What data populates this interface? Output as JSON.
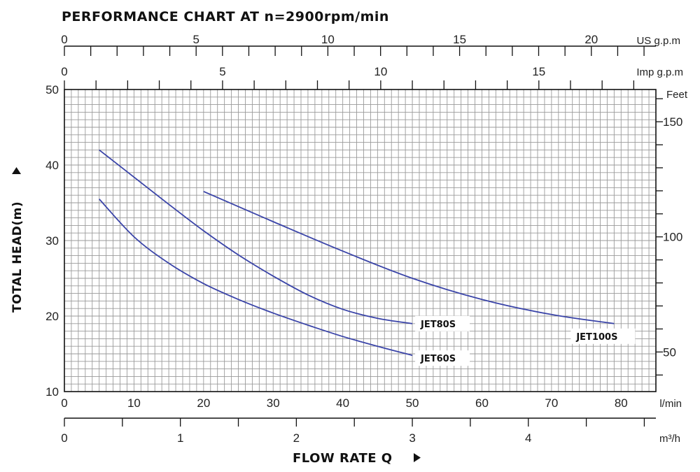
{
  "chart_data": {
    "type": "line",
    "title": "PERFORMANCE CHART AT n=2900rpm/min",
    "ylabel": "TOTAL HEAD(m)",
    "xlabel": "FLOW RATE Q",
    "axes": {
      "x_lmin": {
        "unit": "l/min",
        "range": [
          0,
          85
        ],
        "ticks": [
          0,
          10,
          20,
          30,
          40,
          50,
          60,
          70,
          80
        ]
      },
      "x_m3h": {
        "unit": "m³/h",
        "range": [
          0,
          5.1
        ],
        "ticks": [
          0,
          1,
          2,
          3,
          4
        ],
        "minor_step": 0.5
      },
      "x_usgpm": {
        "unit": "US g.p.m",
        "range": [
          0,
          22.45
        ],
        "ticks": [
          0,
          5,
          10,
          15,
          20
        ],
        "minor_step": 1
      },
      "x_impgpm": {
        "unit": "Imp g.p.m",
        "range": [
          0,
          18.7
        ],
        "ticks": [
          0,
          5,
          10,
          15
        ],
        "minor_step": 1
      },
      "y_m": {
        "unit": "",
        "range": [
          10,
          50
        ],
        "ticks": [
          10,
          20,
          30,
          40,
          50
        ]
      },
      "y_feet": {
        "unit": "Feet",
        "range": [
          32.8,
          164
        ],
        "ticks": [
          50,
          100,
          150
        ],
        "minor_step": 10
      }
    },
    "grid": true,
    "series": [
      {
        "name": "JET60S",
        "x": [
          5,
          10,
          15,
          20,
          25,
          30,
          35,
          40,
          45,
          50
        ],
        "y": [
          35.5,
          30.5,
          27,
          24.3,
          22.2,
          20.4,
          18.8,
          17.3,
          16.0,
          14.8
        ]
      },
      {
        "name": "JET80S",
        "x": [
          5,
          10,
          15,
          20,
          25,
          30,
          35,
          40,
          45,
          50
        ],
        "y": [
          42,
          38.4,
          34.8,
          31.3,
          28.1,
          25.3,
          22.8,
          20.9,
          19.7,
          19.0
        ]
      },
      {
        "name": "JET100S",
        "x": [
          20,
          30,
          40,
          50,
          60,
          70,
          79
        ],
        "y": [
          36.5,
          32.5,
          28.6,
          25.0,
          22.2,
          20.2,
          19.0
        ]
      }
    ],
    "colors": {
      "curve": "#3a44a8",
      "grid": "#9a9a9a",
      "axis": "#111111"
    }
  }
}
